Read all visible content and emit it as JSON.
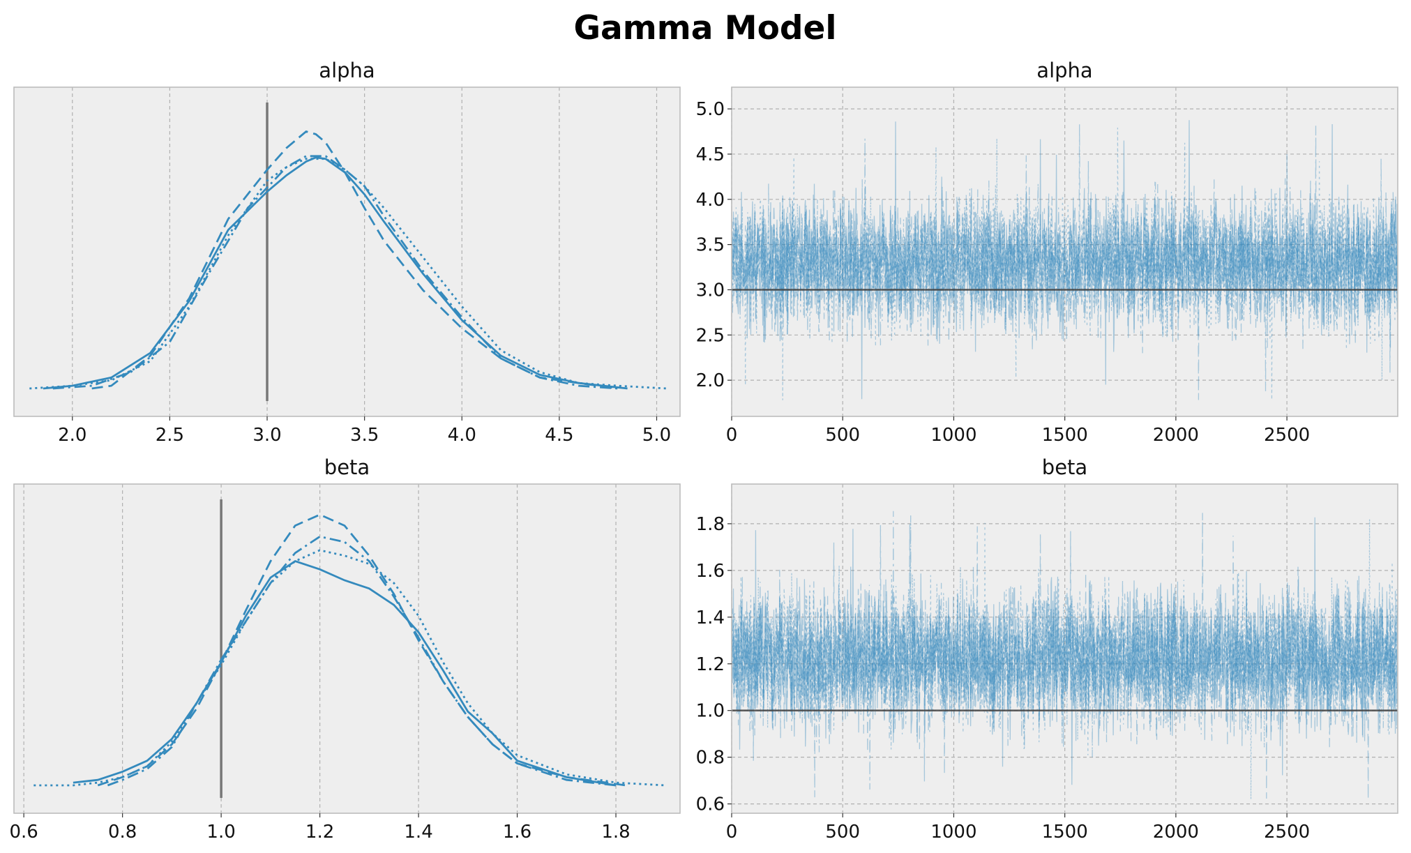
{
  "title": "Gamma Model",
  "colors": {
    "line": "#348abd",
    "ref": "#555555",
    "panel_bg": "#eeeeee",
    "grid": "#b0b0b0",
    "spine": "#bcbcbc"
  },
  "chart_data": [
    {
      "type": "line",
      "title": "alpha",
      "plot": "density",
      "xlim": [
        1.7,
        5.12
      ],
      "ylim": [
        0,
        1.0
      ],
      "xticks": [
        2.0,
        2.5,
        3.0,
        3.5,
        4.0,
        4.5,
        5.0
      ],
      "xtick_labels": [
        "2.0",
        "2.5",
        "3.0",
        "3.5",
        "4.0",
        "4.5",
        "5.0"
      ],
      "grid": "x",
      "reference_line": {
        "x": 3.0
      },
      "series": [
        {
          "style": "solid",
          "x": [
            1.85,
            2.0,
            2.2,
            2.4,
            2.6,
            2.8,
            3.0,
            3.1,
            3.2,
            3.25,
            3.3,
            3.4,
            3.5,
            3.6,
            3.8,
            4.0,
            4.2,
            4.4,
            4.6,
            4.85
          ],
          "y": [
            0.0,
            0.01,
            0.04,
            0.13,
            0.32,
            0.58,
            0.72,
            0.78,
            0.83,
            0.845,
            0.84,
            0.79,
            0.71,
            0.61,
            0.42,
            0.25,
            0.12,
            0.05,
            0.02,
            0.0
          ]
        },
        {
          "style": "dashed",
          "x": [
            2.1,
            2.2,
            2.4,
            2.6,
            2.8,
            3.0,
            3.1,
            3.2,
            3.25,
            3.3,
            3.4,
            3.5,
            3.6,
            3.8,
            4.0,
            4.2,
            4.4,
            4.6,
            4.8
          ],
          "y": [
            0.0,
            0.01,
            0.12,
            0.33,
            0.62,
            0.8,
            0.88,
            0.94,
            0.93,
            0.9,
            0.79,
            0.66,
            0.54,
            0.36,
            0.22,
            0.11,
            0.04,
            0.02,
            0.0
          ]
        },
        {
          "style": "dashdot",
          "x": [
            1.9,
            2.1,
            2.3,
            2.5,
            2.7,
            2.9,
            3.1,
            3.2,
            3.3,
            3.4,
            3.5,
            3.6,
            3.8,
            4.0,
            4.2,
            4.4,
            4.6,
            4.8
          ],
          "y": [
            0.0,
            0.01,
            0.06,
            0.17,
            0.42,
            0.66,
            0.81,
            0.85,
            0.85,
            0.8,
            0.74,
            0.63,
            0.43,
            0.26,
            0.11,
            0.04,
            0.01,
            0.0
          ]
        },
        {
          "style": "dotted",
          "x": [
            1.78,
            2.0,
            2.2,
            2.4,
            2.6,
            2.8,
            3.0,
            3.1,
            3.2,
            3.3,
            3.4,
            3.5,
            3.6,
            3.8,
            4.0,
            4.2,
            4.4,
            4.6,
            4.8,
            5.05
          ],
          "y": [
            0.0,
            0.01,
            0.03,
            0.1,
            0.3,
            0.56,
            0.76,
            0.81,
            0.84,
            0.84,
            0.8,
            0.74,
            0.66,
            0.48,
            0.3,
            0.14,
            0.06,
            0.02,
            0.01,
            0.0
          ]
        }
      ]
    },
    {
      "type": "line",
      "title": "alpha",
      "plot": "trace",
      "xlim": [
        0,
        2999
      ],
      "ylim": [
        1.6,
        5.24
      ],
      "xticks": [
        0,
        500,
        1000,
        1500,
        2000,
        2500
      ],
      "xtick_labels": [
        "0",
        "500",
        "1000",
        "1500",
        "2000",
        "2500"
      ],
      "yticks": [
        2.0,
        2.5,
        3.0,
        3.5,
        4.0,
        4.5,
        5.0
      ],
      "ytick_labels": [
        "2.0",
        "2.5",
        "3.0",
        "3.5",
        "4.0",
        "4.5",
        "5.0"
      ],
      "grid": "both",
      "reference_line": {
        "y": 3.0
      },
      "trace": {
        "draws": 3000,
        "chains": 4,
        "center": 3.28,
        "spread": 0.38,
        "min": 1.78,
        "max": 5.07
      }
    },
    {
      "type": "line",
      "title": "beta",
      "plot": "density",
      "xlim": [
        0.58,
        1.93
      ],
      "ylim": [
        0,
        1.0
      ],
      "xticks": [
        0.6,
        0.8,
        1.0,
        1.2,
        1.4,
        1.6,
        1.8
      ],
      "xtick_labels": [
        "0.6",
        "0.8",
        "1.0",
        "1.2",
        "1.4",
        "1.6",
        "1.8"
      ],
      "grid": "x",
      "reference_line": {
        "x": 1.0
      },
      "series": [
        {
          "style": "solid",
          "x": [
            0.7,
            0.75,
            0.8,
            0.85,
            0.9,
            0.95,
            1.0,
            1.05,
            1.1,
            1.15,
            1.2,
            1.25,
            1.3,
            1.35,
            1.4,
            1.45,
            1.5,
            1.55,
            1.6,
            1.7,
            1.8
          ],
          "y": [
            0.01,
            0.02,
            0.05,
            0.09,
            0.17,
            0.3,
            0.45,
            0.62,
            0.76,
            0.82,
            0.79,
            0.75,
            0.72,
            0.66,
            0.56,
            0.42,
            0.27,
            0.19,
            0.09,
            0.03,
            0.0
          ]
        },
        {
          "style": "dashed",
          "x": [
            0.75,
            0.8,
            0.85,
            0.9,
            0.95,
            1.0,
            1.05,
            1.1,
            1.15,
            1.2,
            1.25,
            1.3,
            1.35,
            1.4,
            1.45,
            1.5,
            1.55,
            1.6,
            1.7,
            1.82
          ],
          "y": [
            0.0,
            0.03,
            0.07,
            0.15,
            0.28,
            0.45,
            0.64,
            0.82,
            0.95,
            0.99,
            0.95,
            0.84,
            0.7,
            0.53,
            0.38,
            0.25,
            0.15,
            0.08,
            0.03,
            0.0
          ]
        },
        {
          "style": "dashdot",
          "x": [
            0.77,
            0.8,
            0.85,
            0.9,
            0.95,
            1.0,
            1.05,
            1.1,
            1.15,
            1.2,
            1.25,
            1.3,
            1.35,
            1.4,
            1.45,
            1.5,
            1.55,
            1.6,
            1.7,
            1.8
          ],
          "y": [
            0.0,
            0.02,
            0.06,
            0.14,
            0.3,
            0.46,
            0.6,
            0.74,
            0.85,
            0.91,
            0.89,
            0.82,
            0.69,
            0.54,
            0.38,
            0.25,
            0.15,
            0.08,
            0.02,
            0.0
          ]
        },
        {
          "style": "dotted",
          "x": [
            0.62,
            0.7,
            0.75,
            0.8,
            0.85,
            0.9,
            0.95,
            1.0,
            1.05,
            1.1,
            1.15,
            1.2,
            1.25,
            1.3,
            1.35,
            1.4,
            1.45,
            1.5,
            1.55,
            1.6,
            1.7,
            1.8,
            1.9
          ],
          "y": [
            0.0,
            0.0,
            0.01,
            0.03,
            0.07,
            0.16,
            0.3,
            0.44,
            0.6,
            0.74,
            0.82,
            0.86,
            0.84,
            0.81,
            0.74,
            0.62,
            0.45,
            0.3,
            0.19,
            0.11,
            0.04,
            0.01,
            0.0
          ]
        }
      ]
    },
    {
      "type": "line",
      "title": "beta",
      "plot": "trace",
      "xlim": [
        0,
        2999
      ],
      "ylim": [
        0.56,
        1.97
      ],
      "xticks": [
        0,
        500,
        1000,
        1500,
        2000,
        2500
      ],
      "xtick_labels": [
        "0",
        "500",
        "1000",
        "1500",
        "2000",
        "2500"
      ],
      "yticks": [
        0.6,
        0.8,
        1.0,
        1.2,
        1.4,
        1.6,
        1.8
      ],
      "ytick_labels": [
        "0.6",
        "0.8",
        "1.0",
        "1.2",
        "1.4",
        "1.6",
        "1.8"
      ],
      "grid": "both",
      "reference_line": {
        "y": 1.0
      },
      "trace": {
        "draws": 3000,
        "chains": 4,
        "center": 1.22,
        "spread": 0.16,
        "min": 0.62,
        "max": 1.89
      }
    }
  ]
}
